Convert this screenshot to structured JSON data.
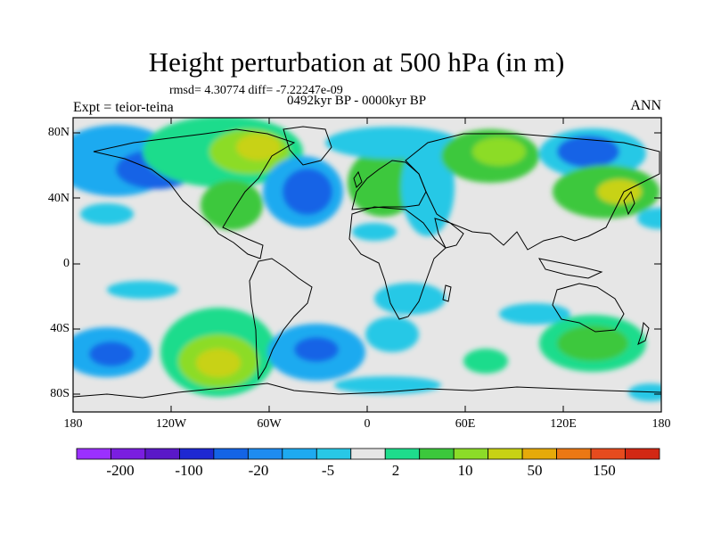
{
  "title": "Height perturbation at 500 hPa (in m)",
  "stats": "rmsd= 4.30774 diff= -7.22247e-09",
  "subtitle": "0492kyr BP - 0000kyr BP",
  "left_string": "Expt = teior-teina",
  "right_string": "ANN",
  "lat_labels": [
    "80N",
    "40N",
    "0",
    "40S",
    "80S"
  ],
  "lon_labels": [
    "180",
    "120W",
    "60W",
    "0",
    "60E",
    "120E",
    "180"
  ],
  "colorbar": {
    "colors": [
      "#9b30ff",
      "#7a1ee0",
      "#5a18c8",
      "#1e28d2",
      "#1464e6",
      "#1e8cf0",
      "#1eaaf0",
      "#28c8e6",
      "#e6e6e6",
      "#1edc8c",
      "#3cc83c",
      "#8cdc28",
      "#c8d214",
      "#e6aa0a",
      "#eb7814",
      "#e64b1e",
      "#d22814"
    ],
    "labels": [
      "-200",
      "-100",
      "-20",
      "-5",
      "2",
      "10",
      "50",
      "150"
    ]
  },
  "map": {
    "lon_range": [
      -180,
      180
    ],
    "lat_range": [
      -90,
      90
    ],
    "background_value_color": "#e6e6e6"
  }
}
